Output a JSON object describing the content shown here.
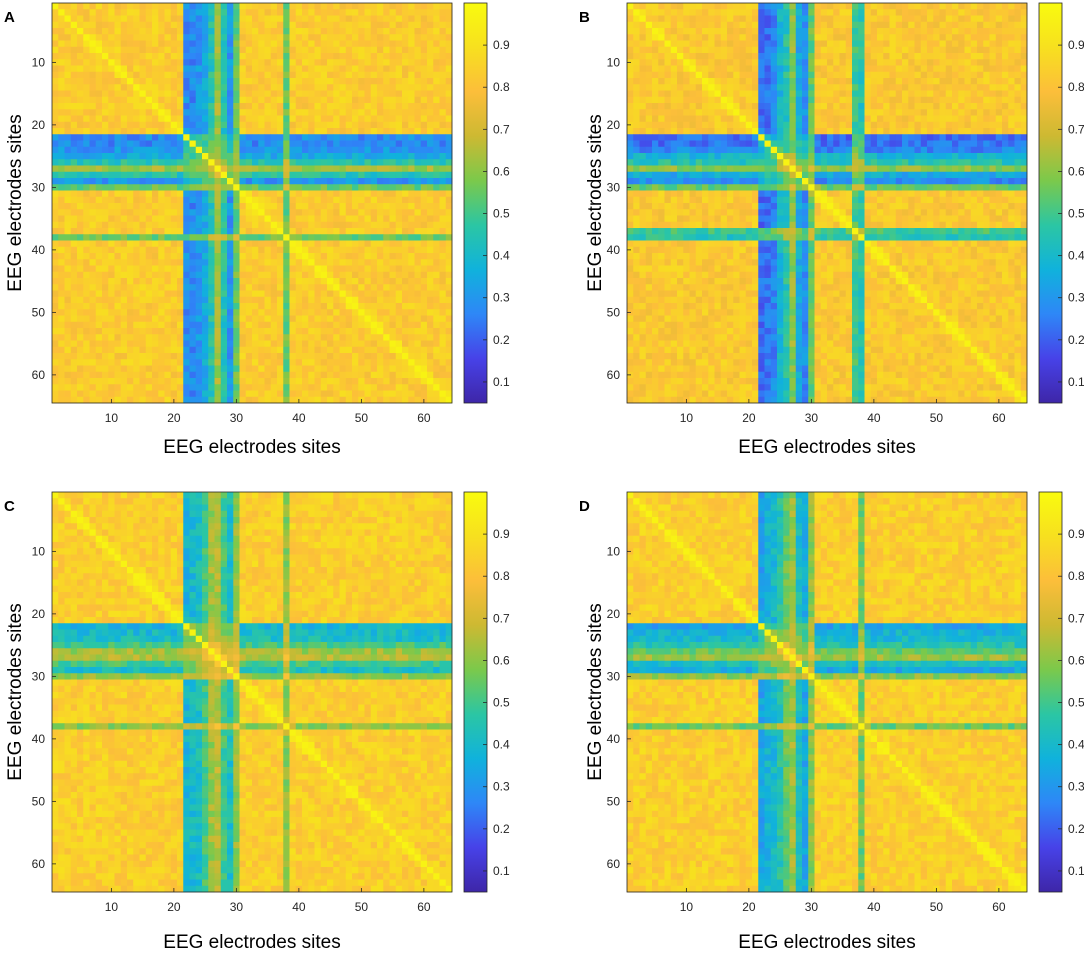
{
  "chart_data": [
    {
      "type": "heatmap",
      "panel": "A",
      "xlabel": "EEG electrodes sites",
      "ylabel": "EEG electrodes sites",
      "size": 64,
      "xlim": [
        0.5,
        64.5
      ],
      "ylim": [
        0.5,
        64.5
      ],
      "xticks": [
        10,
        20,
        30,
        40,
        50,
        60
      ],
      "yticks": [
        10,
        20,
        30,
        40,
        50,
        60
      ],
      "colorbar": {
        "range": [
          0.05,
          1.0
        ],
        "ticks": [
          0.1,
          0.2,
          0.3,
          0.4,
          0.5,
          0.6,
          0.7,
          0.8,
          0.9
        ]
      },
      "bands": [
        {
          "index": 22,
          "value": 0.28
        },
        {
          "index": 23,
          "value": 0.27
        },
        {
          "index": 24,
          "value": 0.3
        },
        {
          "index": 25,
          "value": 0.35
        },
        {
          "index": 26,
          "value": 0.45
        },
        {
          "index": 27,
          "value": 0.62
        },
        {
          "index": 28,
          "value": 0.45
        },
        {
          "index": 29,
          "value": 0.3
        },
        {
          "index": 30,
          "value": 0.55
        },
        {
          "index": 38,
          "value": 0.55
        }
      ],
      "base_value": 0.83,
      "diagonal_value": 0.97
    },
    {
      "type": "heatmap",
      "panel": "B",
      "xlabel": "EEG electrodes sites",
      "ylabel": "EEG electrodes sites",
      "size": 64,
      "xlim": [
        0.5,
        64.5
      ],
      "ylim": [
        0.5,
        64.5
      ],
      "xticks": [
        10,
        20,
        30,
        40,
        50,
        60
      ],
      "yticks": [
        10,
        20,
        30,
        40,
        50,
        60
      ],
      "colorbar": {
        "range": [
          0.05,
          1.0
        ],
        "ticks": [
          0.1,
          0.2,
          0.3,
          0.4,
          0.5,
          0.6,
          0.7,
          0.8,
          0.9
        ]
      },
      "bands": [
        {
          "index": 22,
          "value": 0.22
        },
        {
          "index": 23,
          "value": 0.23
        },
        {
          "index": 24,
          "value": 0.27
        },
        {
          "index": 25,
          "value": 0.38
        },
        {
          "index": 26,
          "value": 0.45
        },
        {
          "index": 27,
          "value": 0.6
        },
        {
          "index": 28,
          "value": 0.35
        },
        {
          "index": 29,
          "value": 0.28
        },
        {
          "index": 30,
          "value": 0.55
        },
        {
          "index": 37,
          "value": 0.5
        },
        {
          "index": 38,
          "value": 0.45
        }
      ],
      "base_value": 0.82,
      "diagonal_value": 0.97
    },
    {
      "type": "heatmap",
      "panel": "C",
      "xlabel": "EEG electrodes sites",
      "ylabel": "EEG electrodes sites",
      "size": 64,
      "xlim": [
        0.5,
        64.5
      ],
      "ylim": [
        0.5,
        64.5
      ],
      "xticks": [
        10,
        20,
        30,
        40,
        50,
        60
      ],
      "yticks": [
        10,
        20,
        30,
        40,
        50,
        60
      ],
      "colorbar": {
        "range": [
          0.05,
          1.0
        ],
        "ticks": [
          0.1,
          0.2,
          0.3,
          0.4,
          0.5,
          0.6,
          0.7,
          0.8,
          0.9
        ]
      },
      "bands": [
        {
          "index": 22,
          "value": 0.38
        },
        {
          "index": 23,
          "value": 0.4
        },
        {
          "index": 24,
          "value": 0.42
        },
        {
          "index": 25,
          "value": 0.5
        },
        {
          "index": 26,
          "value": 0.62
        },
        {
          "index": 27,
          "value": 0.65
        },
        {
          "index": 28,
          "value": 0.5
        },
        {
          "index": 29,
          "value": 0.42
        },
        {
          "index": 30,
          "value": 0.6
        },
        {
          "index": 38,
          "value": 0.6
        }
      ],
      "base_value": 0.84,
      "diagonal_value": 0.97
    },
    {
      "type": "heatmap",
      "panel": "D",
      "xlabel": "EEG electrodes sites",
      "ylabel": "EEG electrodes sites",
      "size": 64,
      "xlim": [
        0.5,
        64.5
      ],
      "ylim": [
        0.5,
        64.5
      ],
      "xticks": [
        10,
        20,
        30,
        40,
        50,
        60
      ],
      "yticks": [
        10,
        20,
        30,
        40,
        50,
        60
      ],
      "colorbar": {
        "range": [
          0.05,
          1.0
        ],
        "ticks": [
          0.1,
          0.2,
          0.3,
          0.4,
          0.5,
          0.6,
          0.7,
          0.8,
          0.9
        ]
      },
      "bands": [
        {
          "index": 22,
          "value": 0.33
        },
        {
          "index": 23,
          "value": 0.38
        },
        {
          "index": 24,
          "value": 0.4
        },
        {
          "index": 25,
          "value": 0.45
        },
        {
          "index": 26,
          "value": 0.55
        },
        {
          "index": 27,
          "value": 0.62
        },
        {
          "index": 28,
          "value": 0.42
        },
        {
          "index": 29,
          "value": 0.35
        },
        {
          "index": 30,
          "value": 0.6
        },
        {
          "index": 38,
          "value": 0.55
        }
      ],
      "base_value": 0.84,
      "diagonal_value": 0.97
    }
  ],
  "colormap": [
    "#3e26a8",
    "#4742e8",
    "#2e87f7",
    "#10b2dc",
    "#2bc6a4",
    "#7bc94b",
    "#cdb932",
    "#fcbe3a",
    "#f7e01f",
    "#f9fb0e"
  ]
}
